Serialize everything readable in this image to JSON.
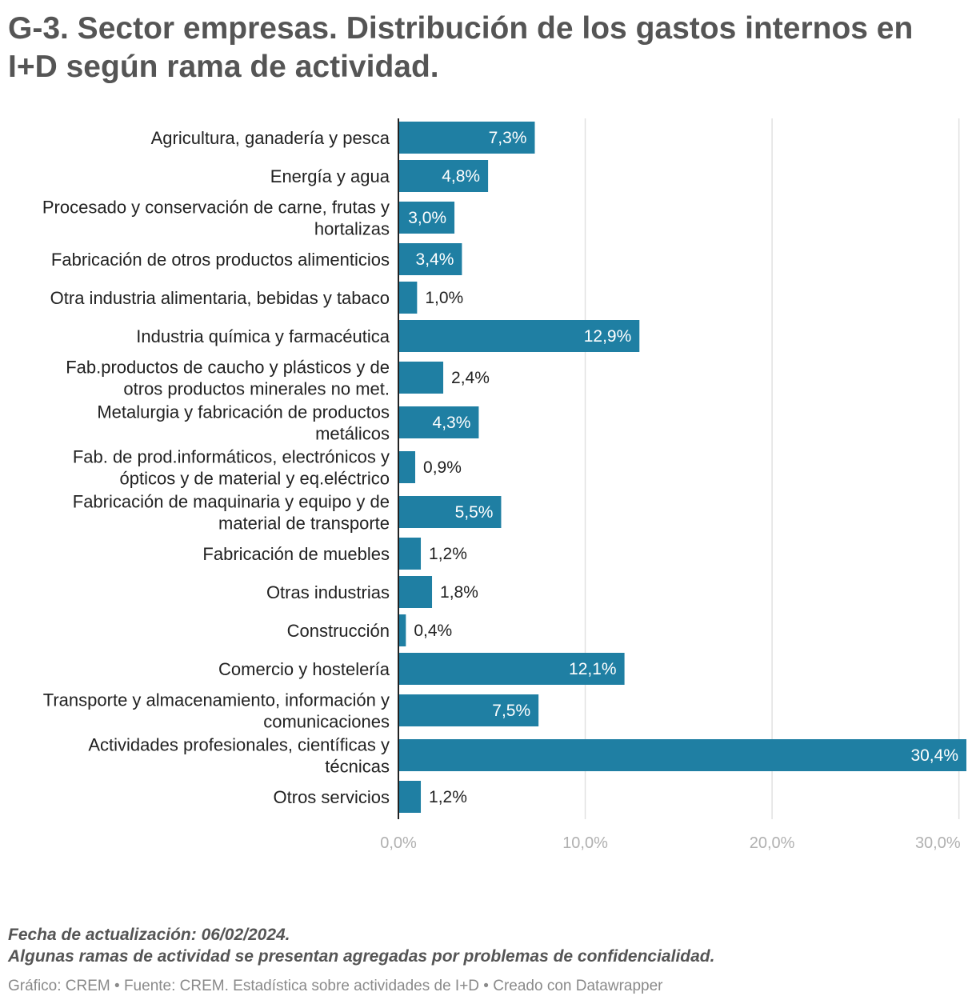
{
  "title": "G-3. Sector empresas. Distribución de los gastos internos en I+D según rama de actividad.",
  "notes": {
    "updated": "Fecha de actualización: 06/02/2024.",
    "confidentiality": "Algunas ramas de actividad se presentan agregadas por problemas de confidencialidad."
  },
  "credit": "Gráfico: CREM • Fuente: CREM. Estadística sobre actividades de I+D • Creado con Datawrapper",
  "colors": {
    "bar": "#1f7fa3",
    "grid": "#e1e1e1",
    "axis": "#222222",
    "label_inside": "#ffffff",
    "label_outside": "#222222"
  },
  "chart_data": {
    "type": "bar",
    "orientation": "horizontal",
    "xlim": [
      0,
      30.4
    ],
    "grid": true,
    "ticks": [
      0,
      10,
      20,
      30
    ],
    "tick_labels": [
      "0,0%",
      "10,0%",
      "20,0%",
      "30,0%"
    ],
    "categories": [
      [
        "Agricultura, ganadería y pesca"
      ],
      [
        "Energía y agua"
      ],
      [
        "Procesado y conservación de carne, frutas y",
        "hortalizas"
      ],
      [
        "Fabricación de otros productos alimenticios"
      ],
      [
        "Otra industria alimentaria, bebidas y tabaco"
      ],
      [
        "Industria química y farmacéutica"
      ],
      [
        "Fab.productos de caucho y plásticos y de",
        "otros productos minerales no met."
      ],
      [
        "Metalurgia y fabricación de productos",
        "metálicos"
      ],
      [
        "Fab. de prod.informáticos, electrónicos y",
        "ópticos y de material y eq.eléctrico"
      ],
      [
        "Fabricación de maquinaria y equipo y de",
        "material de transporte"
      ],
      [
        "Fabricación de muebles"
      ],
      [
        "Otras industrias"
      ],
      [
        "Construcción"
      ],
      [
        "Comercio y hostelería"
      ],
      [
        "Transporte y almacenamiento, información y",
        "comunicaciones"
      ],
      [
        "Actividades profesionales, científicas y",
        "técnicas"
      ],
      [
        "Otros servicios"
      ]
    ],
    "values": [
      7.3,
      4.8,
      3.0,
      3.4,
      1.0,
      12.9,
      2.4,
      4.3,
      0.9,
      5.5,
      1.2,
      1.8,
      0.4,
      12.1,
      7.5,
      30.4,
      1.2
    ],
    "value_labels": [
      "7,3%",
      "4,8%",
      "3,0%",
      "3,4%",
      "1,0%",
      "12,9%",
      "2,4%",
      "4,3%",
      "0,9%",
      "5,5%",
      "1,2%",
      "1,8%",
      "0,4%",
      "12,1%",
      "7,5%",
      "30,4%",
      "1,2%"
    ]
  }
}
